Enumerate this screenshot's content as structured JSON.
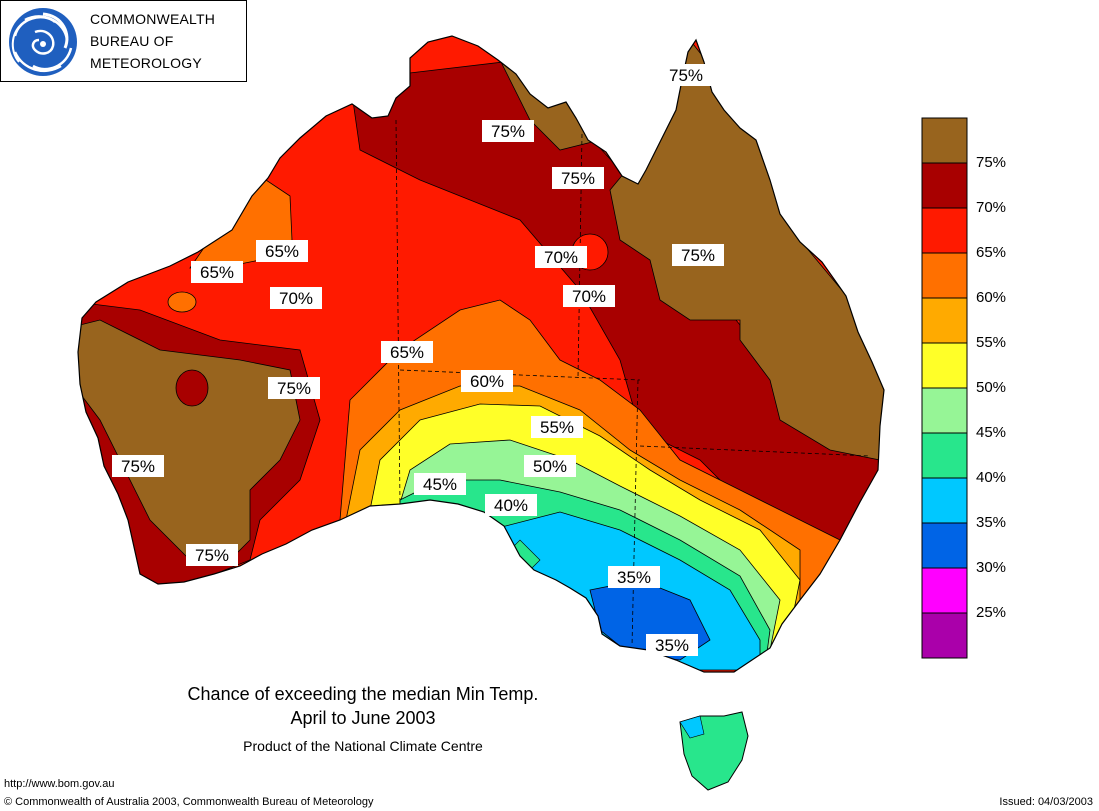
{
  "header": {
    "org_line1": "COMMONWEALTH",
    "org_line2": "BUREAU OF",
    "org_line3": "METEOROLOGY"
  },
  "map": {
    "title_line1": "Chance of exceeding the median Min Temp.",
    "title_line2": "April to June 2003",
    "product_note": "Product of the National Climate Centre",
    "contour_labels": [
      "75%",
      "75%",
      "75%",
      "75%",
      "70%",
      "70%",
      "65%",
      "65%",
      "70%",
      "65%",
      "60%",
      "55%",
      "50%",
      "45%",
      "40%",
      "75%",
      "75%",
      "75%",
      "35%",
      "35%"
    ]
  },
  "legend": {
    "colors": [
      "#98641e",
      "#a80000",
      "#ff1a00",
      "#ff7000",
      "#ffaa00",
      "#ffff28",
      "#96f596",
      "#28e68c",
      "#00c8ff",
      "#0064e6",
      "#ff00ff",
      "#aa00aa"
    ],
    "labels": [
      "75%",
      "70%",
      "65%",
      "60%",
      "55%",
      "50%",
      "45%",
      "40%",
      "35%",
      "30%",
      "25%"
    ]
  },
  "footer": {
    "url": "http://www.bom.gov.au",
    "copyright": "© Commonwealth of Australia 2003, Commonwealth Bureau of Meteorology",
    "issued": "Issued: 04/03/2003"
  }
}
